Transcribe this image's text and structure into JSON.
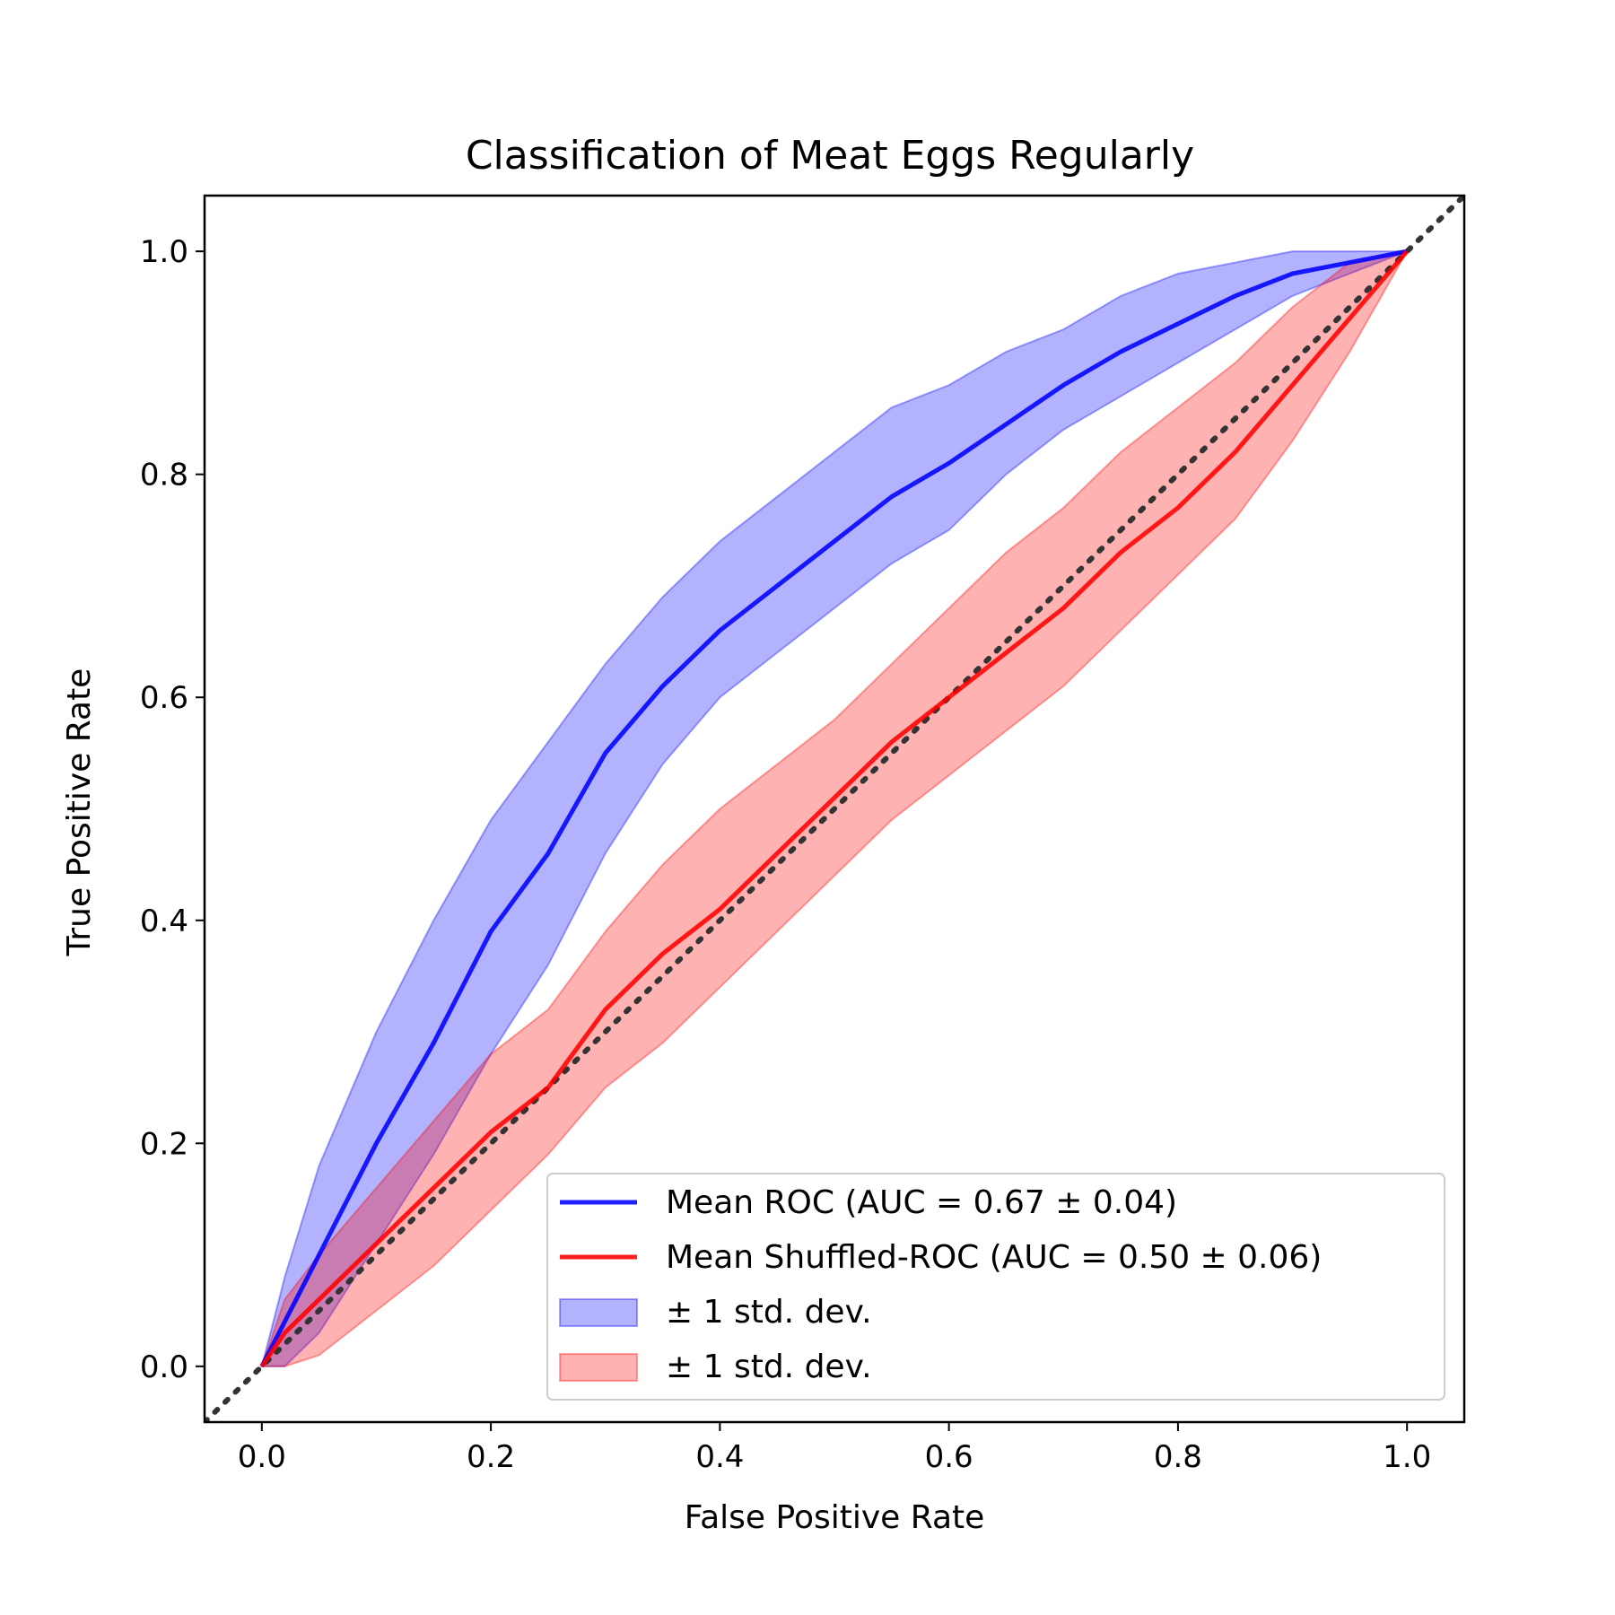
{
  "chart_data": {
    "type": "line",
    "title": "Classification of Meat Eggs Regularly",
    "xlabel": "False Positive Rate",
    "ylabel": "True Positive Rate",
    "xlim": [
      -0.05,
      1.05
    ],
    "ylim": [
      -0.05,
      1.05
    ],
    "xticks": [
      "0.0",
      "0.2",
      "0.4",
      "0.6",
      "0.8",
      "1.0"
    ],
    "yticks": [
      "0.0",
      "0.2",
      "0.4",
      "0.6",
      "0.8",
      "1.0"
    ],
    "grid": false,
    "legend_position": "lower-right",
    "series": [
      {
        "name": "Mean ROC (AUC = 0.67 ± 0.04)",
        "color": "#0000ff",
        "x": [
          0,
          0.02,
          0.05,
          0.1,
          0.15,
          0.2,
          0.25,
          0.3,
          0.35,
          0.4,
          0.45,
          0.5,
          0.55,
          0.6,
          0.65,
          0.7,
          0.75,
          0.8,
          0.85,
          0.9,
          0.95,
          1.0
        ],
        "y": [
          0,
          0.04,
          0.1,
          0.2,
          0.29,
          0.39,
          0.46,
          0.55,
          0.61,
          0.66,
          0.7,
          0.74,
          0.78,
          0.81,
          0.845,
          0.88,
          0.91,
          0.935,
          0.96,
          0.98,
          0.99,
          1.0
        ]
      },
      {
        "name": "Mean Shuffled-ROC (AUC = 0.50 ± 0.06)",
        "color": "#ff0000",
        "x": [
          0,
          0.02,
          0.05,
          0.1,
          0.15,
          0.2,
          0.25,
          0.3,
          0.35,
          0.4,
          0.45,
          0.5,
          0.55,
          0.6,
          0.65,
          0.7,
          0.75,
          0.8,
          0.85,
          0.9,
          0.95,
          1.0
        ],
        "y": [
          0,
          0.03,
          0.06,
          0.11,
          0.16,
          0.21,
          0.25,
          0.32,
          0.37,
          0.41,
          0.46,
          0.51,
          0.56,
          0.6,
          0.64,
          0.68,
          0.73,
          0.77,
          0.82,
          0.88,
          0.94,
          1.0
        ]
      }
    ],
    "bands": [
      {
        "name": "± 1 std. dev.",
        "color": "#0000ff",
        "x": [
          0,
          0.02,
          0.05,
          0.1,
          0.15,
          0.2,
          0.25,
          0.3,
          0.35,
          0.4,
          0.45,
          0.5,
          0.55,
          0.6,
          0.65,
          0.7,
          0.75,
          0.8,
          0.85,
          0.9,
          0.95,
          1.0
        ],
        "upper": [
          0,
          0.08,
          0.18,
          0.3,
          0.4,
          0.49,
          0.56,
          0.63,
          0.69,
          0.74,
          0.78,
          0.82,
          0.86,
          0.88,
          0.91,
          0.93,
          0.96,
          0.98,
          0.99,
          1.0,
          1.0,
          1.0
        ],
        "lower": [
          0,
          0.0,
          0.03,
          0.11,
          0.19,
          0.28,
          0.36,
          0.46,
          0.54,
          0.6,
          0.64,
          0.68,
          0.72,
          0.75,
          0.8,
          0.84,
          0.87,
          0.9,
          0.93,
          0.96,
          0.98,
          1.0
        ]
      },
      {
        "name": "± 1 std. dev.",
        "color": "#ff0000",
        "x": [
          0,
          0.02,
          0.05,
          0.1,
          0.15,
          0.2,
          0.25,
          0.3,
          0.35,
          0.4,
          0.45,
          0.5,
          0.55,
          0.6,
          0.65,
          0.7,
          0.75,
          0.8,
          0.85,
          0.9,
          0.95,
          1.0
        ],
        "upper": [
          0,
          0.06,
          0.1,
          0.16,
          0.22,
          0.28,
          0.32,
          0.39,
          0.45,
          0.5,
          0.54,
          0.58,
          0.63,
          0.68,
          0.73,
          0.77,
          0.82,
          0.86,
          0.9,
          0.95,
          0.99,
          1.0
        ],
        "lower": [
          0,
          0.0,
          0.01,
          0.05,
          0.09,
          0.14,
          0.19,
          0.25,
          0.29,
          0.34,
          0.39,
          0.44,
          0.49,
          0.53,
          0.57,
          0.61,
          0.66,
          0.71,
          0.76,
          0.83,
          0.91,
          1.0
        ]
      }
    ],
    "reference_line": {
      "x": [
        -0.05,
        1.05
      ],
      "y": [
        -0.05,
        1.05
      ],
      "color": "#333333",
      "style": "dotted"
    }
  }
}
